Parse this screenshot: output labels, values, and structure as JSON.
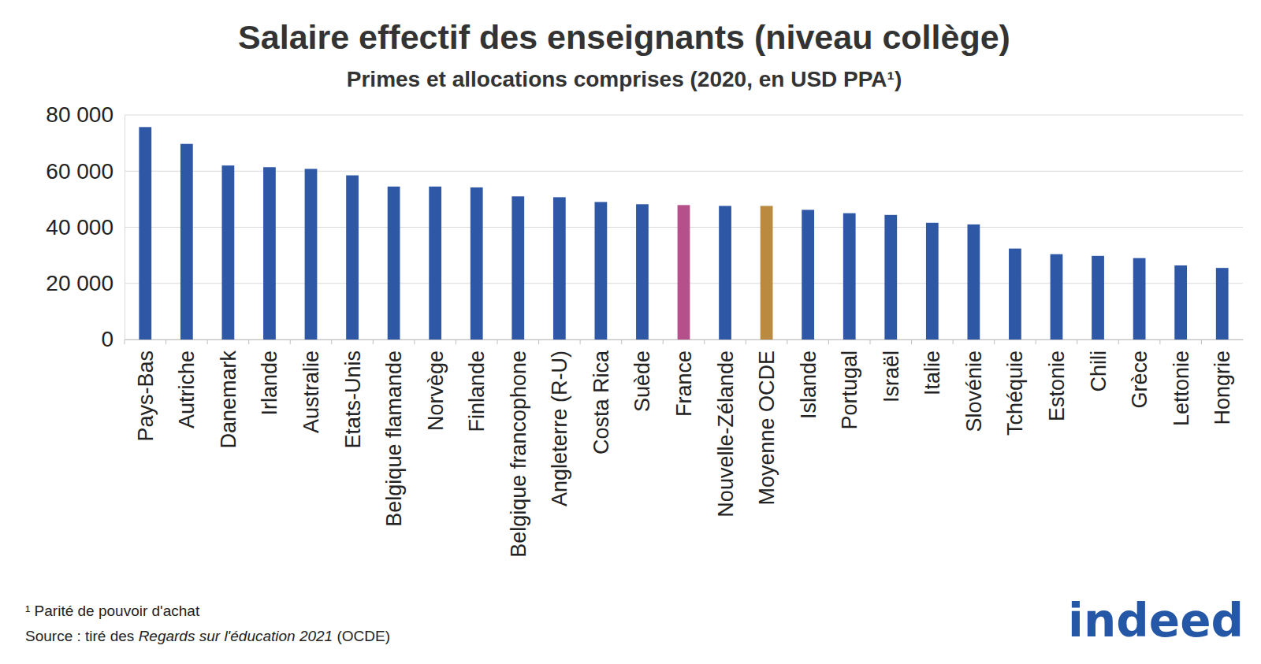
{
  "chart_data": {
    "type": "bar",
    "title": "Salaire effectif des enseignants (niveau collège)",
    "subtitle": "Primes et allocations comprises (2020, en USD PPA¹)",
    "categories": [
      "Pays-Bas",
      "Autriche",
      "Danemark",
      "Irlande",
      "Australie",
      "Etats-Unis",
      "Belgique flamande",
      "Norvège",
      "Finlande",
      "Belgique francophone",
      "Angleterre (R-U)",
      "Costa Rica",
      "Suède",
      "France",
      "Nouvelle-Zélande",
      "Moyenne OCDE",
      "Islande",
      "Portugal",
      "Israël",
      "Italie",
      "Slovénie",
      "Tchéquie",
      "Estonie",
      "Chili",
      "Grèce",
      "Lettonie",
      "Hongrie"
    ],
    "values": [
      75700,
      69700,
      62000,
      61400,
      60800,
      58500,
      54500,
      54500,
      54200,
      51000,
      50700,
      49000,
      48200,
      47900,
      47600,
      47600,
      46200,
      45000,
      44400,
      41600,
      41000,
      32400,
      30400,
      29800,
      29000,
      26400,
      25500
    ],
    "colors": [
      "#2e58a6",
      "#2e58a6",
      "#2e58a6",
      "#2e58a6",
      "#2e58a6",
      "#2e58a6",
      "#2e58a6",
      "#2e58a6",
      "#2e58a6",
      "#2e58a6",
      "#2e58a6",
      "#2e58a6",
      "#2e58a6",
      "#b5508b",
      "#2e58a6",
      "#b98a40",
      "#2e58a6",
      "#2e58a6",
      "#2e58a6",
      "#2e58a6",
      "#2e58a6",
      "#2e58a6",
      "#2e58a6",
      "#2e58a6",
      "#2e58a6",
      "#2e58a6",
      "#2e58a6"
    ],
    "ylim": [
      0,
      80000
    ],
    "yticks": [
      0,
      {
        "value": 20000,
        "label": "20 000"
      },
      {
        "value": 40000,
        "label": "40 000"
      },
      {
        "value": 60000,
        "label": "60 000"
      },
      {
        "value": 80000,
        "label": "80 000"
      }
    ],
    "grid": true,
    "footnote": "¹ Parité de pouvoir d'achat",
    "source": [
      "Source : tiré des ",
      "Regards sur l'éducation 2021",
      " (OCDE)"
    ],
    "logo": "indeed"
  }
}
